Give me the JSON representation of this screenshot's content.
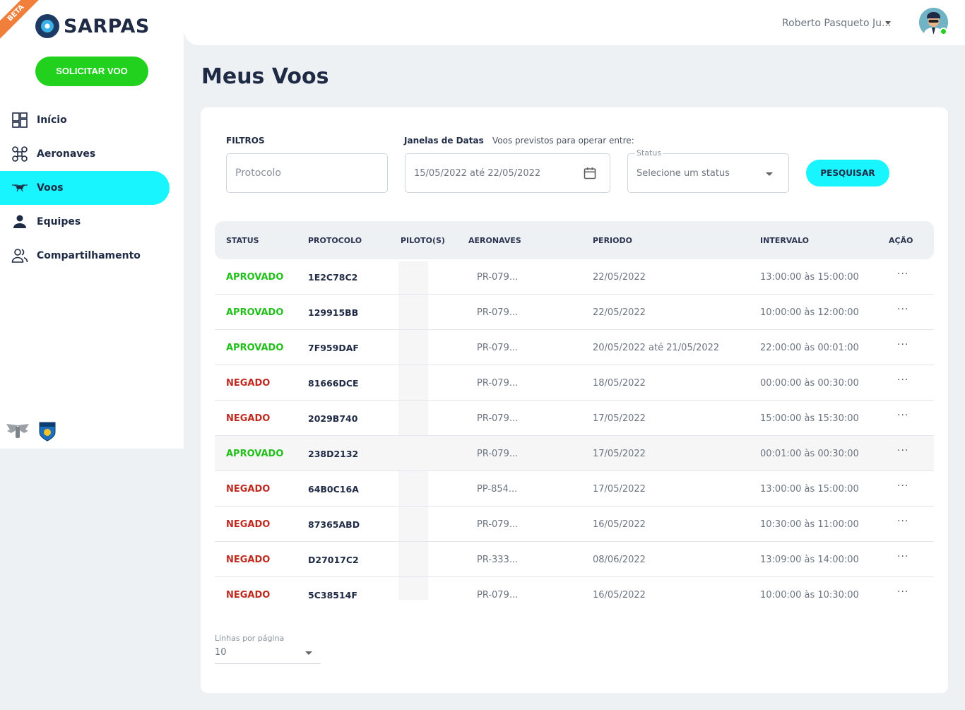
{
  "app": {
    "beta_label": "BETA",
    "logo_text": "SARPAS",
    "request_button": "SOLICITAR VOO"
  },
  "sidebar": {
    "items": [
      {
        "label": "Início",
        "icon": "dashboard-icon",
        "active": false
      },
      {
        "label": "Aeronaves",
        "icon": "drone-icon",
        "active": false
      },
      {
        "label": "Voos",
        "icon": "flight-drone-icon",
        "active": true
      },
      {
        "label": "Equipes",
        "icon": "person-icon",
        "active": false
      },
      {
        "label": "Compartilhamento",
        "icon": "people-icon",
        "active": false
      }
    ]
  },
  "header": {
    "user_name": "Roberto Pasqueto Ju..."
  },
  "page": {
    "title": "Meus Voos"
  },
  "filters": {
    "title": "FILTROS",
    "protocol_placeholder": "Protocolo",
    "date_window_label": "Janelas de Datas",
    "date_window_hint": "Voos previstos para operar entre:",
    "date_range_value": "15/05/2022 até 22/05/2022",
    "status_label": "Status",
    "status_placeholder": "Selecione um status",
    "search_button": "PESQUISAR"
  },
  "table": {
    "columns": [
      "STATUS",
      "PROTOCOLO",
      "PILOTO(S)",
      "AERONAVES",
      "PERIODO",
      "INTERVALO",
      "AÇÃO"
    ],
    "rows": [
      {
        "status": "APROVADO",
        "protocolo": "1E2C78C2",
        "piloto": "",
        "aeronave": "PR-079...",
        "periodo": "22/05/2022",
        "intervalo": "13:00:00 às 15:00:00",
        "acao": "···"
      },
      {
        "status": "APROVADO",
        "protocolo": "129915BB",
        "piloto": "",
        "aeronave": "PR-079...",
        "periodo": "22/05/2022",
        "intervalo": "10:00:00 às 12:00:00",
        "acao": "···"
      },
      {
        "status": "APROVADO",
        "protocolo": "7F959DAF",
        "piloto": "",
        "aeronave": "PR-079...",
        "periodo": "20/05/2022 até 21/05/2022",
        "intervalo": "22:00:00 às 00:01:00",
        "acao": "···"
      },
      {
        "status": "NEGADO",
        "protocolo": "81666DCE",
        "piloto": "",
        "aeronave": "PR-079...",
        "periodo": "18/05/2022",
        "intervalo": "00:00:00 às 00:30:00",
        "acao": "···"
      },
      {
        "status": "NEGADO",
        "protocolo": "2029B740",
        "piloto": "",
        "aeronave": "PR-079...",
        "periodo": "17/05/2022",
        "intervalo": "15:00:00 às 15:30:00",
        "acao": "···"
      },
      {
        "status": "APROVADO",
        "protocolo": "238D2132",
        "piloto": "",
        "aeronave": "PR-079...",
        "periodo": "17/05/2022",
        "intervalo": "00:01:00 às 00:30:00",
        "acao": "···"
      },
      {
        "status": "NEGADO",
        "protocolo": "64B0C16A",
        "piloto": "",
        "aeronave": "PP-854...",
        "periodo": "17/05/2022",
        "intervalo": "13:00:00 às 15:00:00",
        "acao": "···"
      },
      {
        "status": "NEGADO",
        "protocolo": "87365ABD",
        "piloto": "",
        "aeronave": "PR-079...",
        "periodo": "16/05/2022",
        "intervalo": "10:30:00 às 11:00:00",
        "acao": "···"
      },
      {
        "status": "NEGADO",
        "protocolo": "D27017C2",
        "piloto": "",
        "aeronave": "PR-333...",
        "periodo": "08/06/2022",
        "intervalo": "13:09:00 às 14:00:00",
        "acao": "···"
      },
      {
        "status": "NEGADO",
        "protocolo": "5C38514F",
        "piloto": "",
        "aeronave": "PR-079...",
        "periodo": "16/05/2022",
        "intervalo": "10:00:00 às 10:30:00",
        "acao": "···"
      }
    ]
  },
  "pagination": {
    "rows_per_page_label": "Linhas por página",
    "rows_per_page_value": "10"
  },
  "colors": {
    "accent_cyan": "#19f5ff",
    "primary_green": "#22d11d",
    "approved": "#22c01a",
    "denied": "#c0291f",
    "beta_orange": "#f07f3c"
  }
}
